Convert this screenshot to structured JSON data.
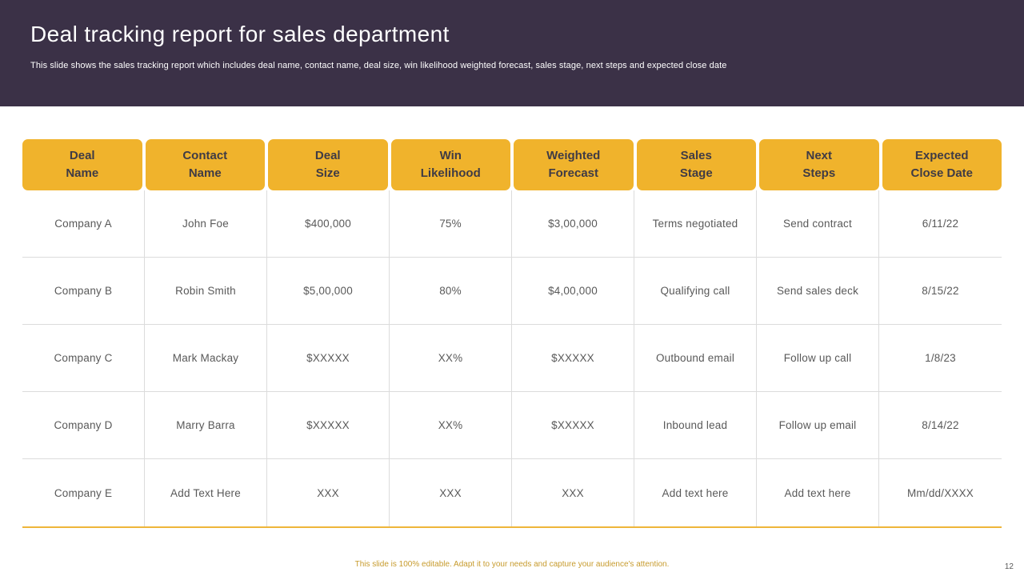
{
  "slide": {
    "title": "Deal tracking report for sales department",
    "subtitle": "This slide shows the sales tracking report which includes deal name, contact name, deal size, win likelihood weighted forecast, sales stage, next steps and expected close date",
    "footer_note": "This slide is 100% editable.  Adapt it to your needs and capture your audience's attention.",
    "page_number": "12"
  },
  "colors": {
    "header_bg": "#3b3147",
    "accent_yellow": "#f0b32c",
    "header_text": "#3f3b45",
    "cell_text": "#595959",
    "grid_line": "#dcdcdc"
  },
  "table": {
    "headers": [
      "Deal\nName",
      "Contact\nName",
      "Deal\nSize",
      "Win\nLikelihood",
      "Weighted\nForecast",
      "Sales\nStage",
      "Next\nSteps",
      "Expected\nClose Date"
    ],
    "rows": [
      [
        "Company A",
        "John Foe",
        "$400,000",
        "75%",
        "$3,00,000",
        "Terms negotiated",
        "Send contract",
        "6/11/22"
      ],
      [
        "Company B",
        "Robin Smith",
        "$5,00,000",
        "80%",
        "$4,00,000",
        "Qualifying call",
        "Send sales deck",
        "8/15/22"
      ],
      [
        "Company C",
        "Mark Mackay",
        "$XXXXX",
        "XX%",
        "$XXXXX",
        "Outbound email",
        "Follow up call",
        "1/8/23"
      ],
      [
        "Company D",
        "Marry Barra",
        "$XXXXX",
        "XX%",
        "$XXXXX",
        "Inbound lead",
        "Follow up email",
        "8/14/22"
      ],
      [
        "Company E",
        "Add Text Here",
        "XXX",
        "XXX",
        "XXX",
        "Add text here",
        "Add text here",
        "Mm/dd/XXXX"
      ]
    ]
  }
}
